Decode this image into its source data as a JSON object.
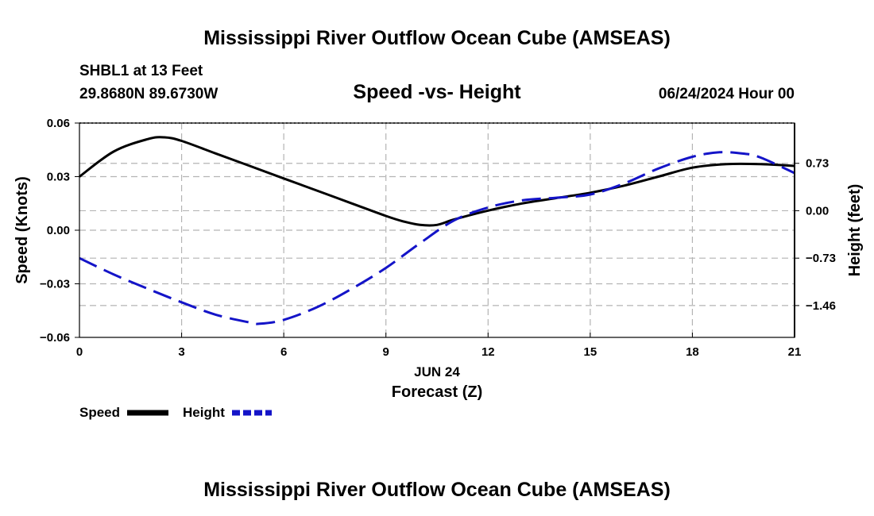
{
  "header": {
    "title": "Mississippi River Outflow Ocean Cube (AMSEAS)",
    "station_line": "SHBL1 at 13 Feet",
    "coords_line": "29.8680N  89.6730W",
    "plot_title": "Speed -vs- Height",
    "date_line": "06/24/2024 Hour 00"
  },
  "footer": {
    "title": "Mississippi River Outflow Ocean Cube (AMSEAS)"
  },
  "colors": {
    "speed": "#000000",
    "height": "#1414c8",
    "grid": "#b4b4b4"
  },
  "chart_data": {
    "type": "line",
    "title": "Speed -vs- Height",
    "xlabel": "Forecast (Z)",
    "date_label": "JUN 24",
    "ylabel_left": "Speed (Knots)",
    "ylabel_right": "Height (feet)",
    "xlim": [
      0,
      21
    ],
    "ylim_left": [
      -0.06,
      0.06
    ],
    "ylim_right": [
      -1.95,
      1.35
    ],
    "x_ticks": [
      "0",
      "3",
      "6",
      "9",
      "12",
      "15",
      "18",
      "21"
    ],
    "y_ticks_left": [
      "0.06",
      "0.03",
      "0.00",
      "−0.03",
      "−0.06"
    ],
    "y_ticks_right": [
      "0.73",
      "0.00",
      "−0.73",
      "−1.46"
    ],
    "legend": {
      "position": "bottom-left",
      "speed_label": "Speed",
      "height_label": "Height"
    },
    "series": [
      {
        "name": "Speed",
        "axis": "left",
        "style": "solid",
        "x": [
          0,
          1,
          2,
          2.5,
          3,
          4,
          5,
          6,
          7,
          8,
          9,
          9.5,
          10,
          10.5,
          11,
          12,
          13,
          14,
          15,
          16,
          17,
          18,
          19,
          20,
          21
        ],
        "values": [
          0.03,
          0.044,
          0.051,
          0.052,
          0.05,
          0.043,
          0.036,
          0.029,
          0.022,
          0.015,
          0.008,
          0.005,
          0.003,
          0.003,
          0.006,
          0.011,
          0.015,
          0.018,
          0.021,
          0.025,
          0.03,
          0.035,
          0.037,
          0.037,
          0.036
        ]
      },
      {
        "name": "Height",
        "axis": "right",
        "style": "dashed",
        "x": [
          0,
          1,
          2,
          3,
          4,
          5,
          5.3,
          6,
          7,
          8,
          9,
          10,
          11,
          12,
          13,
          14,
          15,
          16,
          17,
          18,
          18.8,
          19.5,
          20,
          21
        ],
        "values": [
          -0.73,
          -0.98,
          -1.2,
          -1.41,
          -1.6,
          -1.72,
          -1.74,
          -1.68,
          -1.48,
          -1.2,
          -0.88,
          -0.5,
          -0.15,
          0.05,
          0.16,
          0.2,
          0.25,
          0.42,
          0.65,
          0.83,
          0.9,
          0.88,
          0.82,
          0.58
        ]
      }
    ]
  }
}
